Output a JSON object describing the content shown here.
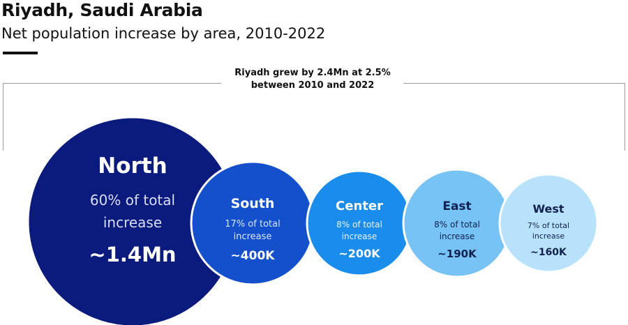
{
  "title": "Riyadh, Saudi Arabia",
  "subtitle": "Net population increase by area, 2010-2022",
  "note": "Riyadh grew by 2.4Mn at 2.5% between 2010 and 2022",
  "chart_data": {
    "type": "bubble",
    "title": "Riyadh, Saudi Arabia",
    "subtitle": "Net population increase by area, 2010-2022",
    "annotation": "Riyadh grew by 2.4Mn at 2.5% between 2010 and 2022",
    "total_increase_mn": 2.4,
    "growth_rate_pct": 2.5,
    "categories": [
      "North",
      "South",
      "Center",
      "East",
      "West"
    ],
    "share_pct": [
      60,
      17,
      8,
      8,
      7
    ],
    "increase_values": [
      1400000,
      400000,
      200000,
      190000,
      160000
    ],
    "share_labels": [
      "60% of total",
      "17% of total",
      "8% of total",
      "8% of total",
      "7% of total"
    ],
    "share_suffix": "increase",
    "value_labels": [
      "~1.4Mn",
      "~400K",
      "~200K",
      "~190K",
      "~160K"
    ],
    "colors": [
      "#0b1a7d",
      "#1450cc",
      "#1a8cec",
      "#78c3f6",
      "#b8e2fb"
    ],
    "text_colors": [
      "#ffffff",
      "#ffffff",
      "#ffffff",
      "#11214f",
      "#11214f"
    ],
    "subtext_colors": [
      "#d9defa",
      "#d6e6ff",
      "#e4f4ff",
      "#11214f",
      "#11214f"
    ]
  }
}
